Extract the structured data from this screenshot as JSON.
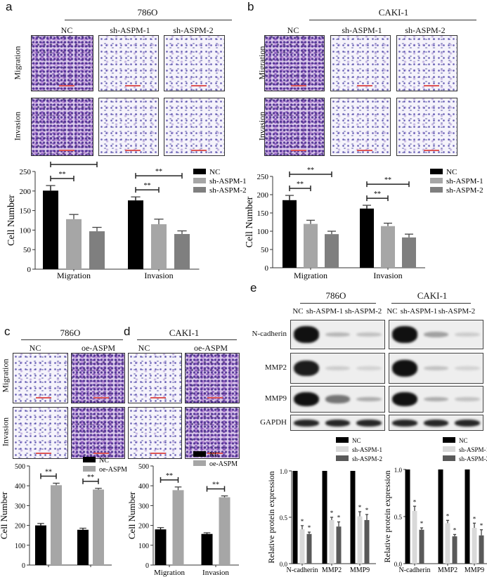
{
  "panel_a": {
    "label": "a",
    "cell_line": "786O",
    "columns": [
      "NC",
      "sh-ASPM-1",
      "sh-ASPM-2"
    ],
    "rows": [
      "Migration",
      "Invasion"
    ]
  },
  "panel_b": {
    "label": "b",
    "cell_line": "CAKI-1",
    "columns": [
      "NC",
      "sh-ASPM-1",
      "sh-ASPM-2"
    ],
    "rows": [
      "Migration",
      "Invasion"
    ]
  },
  "panel_c": {
    "label": "c",
    "cell_line": "786O",
    "columns": [
      "NC",
      "oe-ASPM"
    ],
    "rows": [
      "Migration",
      "Invasion"
    ]
  },
  "panel_d": {
    "label": "d",
    "cell_line": "CAKI-1",
    "columns": [
      "NC",
      "oe-ASPM"
    ]
  },
  "panel_e": {
    "label": "e",
    "cell_lines": [
      "786O",
      "CAKI-1"
    ],
    "columns": [
      "NC",
      "sh-ASPM-1",
      "sh-ASPM-2"
    ],
    "proteins": [
      "N-cadherin",
      "MMP2",
      "MMP9",
      "GAPDH"
    ]
  },
  "colors": {
    "NC": "#000000",
    "sh-ASPM-1": "#a6a6a6",
    "sh-ASPM-2": "#7f7f7f",
    "oe-ASPM": "#a6a6a6",
    "e_sh-ASPM-1": "#d9d9d9",
    "e_sh-ASPM-2": "#595959"
  },
  "chart_data": [
    {
      "type": "bar",
      "panel": "a",
      "categories": [
        "Migration",
        "Invasion"
      ],
      "ylabel": "Cell Number",
      "ylim": [
        0,
        250
      ],
      "yticks": [
        "0",
        "50",
        "100",
        "150",
        "200",
        "250"
      ],
      "series": [
        {
          "name": "NC",
          "values": [
            201,
            176
          ],
          "errors": [
            13,
            9
          ]
        },
        {
          "name": "sh-ASPM-1",
          "values": [
            128,
            115
          ],
          "errors": [
            12,
            13
          ]
        },
        {
          "name": "sh-ASPM-2",
          "values": [
            97,
            90
          ],
          "errors": [
            10,
            8
          ]
        }
      ],
      "significance": [
        {
          "category": 0,
          "from": 0,
          "to": 1,
          "label": "**"
        },
        {
          "category": 0,
          "from": 0,
          "to": 2,
          "label": "**"
        },
        {
          "category": 1,
          "from": 0,
          "to": 1,
          "label": "**"
        },
        {
          "category": 1,
          "from": 0,
          "to": 2,
          "label": "**"
        }
      ],
      "legend": "right"
    },
    {
      "type": "bar",
      "panel": "b",
      "categories": [
        "Migration",
        "Invasion"
      ],
      "ylabel": "Cell Number",
      "ylim": [
        0,
        250
      ],
      "yticks": [
        "0",
        "50",
        "100",
        "150",
        "200",
        "250"
      ],
      "series": [
        {
          "name": "NC",
          "values": [
            185,
            162
          ],
          "errors": [
            13,
            9
          ]
        },
        {
          "name": "sh-ASPM-1",
          "values": [
            120,
            114
          ],
          "errors": [
            10,
            8
          ]
        },
        {
          "name": "sh-ASPM-2",
          "values": [
            92,
            83
          ],
          "errors": [
            8,
            9
          ]
        }
      ],
      "significance": [
        {
          "category": 0,
          "from": 0,
          "to": 1,
          "label": "**"
        },
        {
          "category": 0,
          "from": 0,
          "to": 2,
          "label": "**"
        },
        {
          "category": 1,
          "from": 0,
          "to": 1,
          "label": "**"
        },
        {
          "category": 1,
          "from": 0,
          "to": 2,
          "label": "**"
        }
      ],
      "legend": "right"
    },
    {
      "type": "bar",
      "panel": "c",
      "categories": [
        "",
        ""
      ],
      "ylabel": "Cell Number",
      "ylim": [
        0,
        500
      ],
      "yticks": [
        "0",
        "100",
        "200",
        "300",
        "400",
        "500"
      ],
      "series": [
        {
          "name": "NC",
          "values": [
            200,
            178
          ],
          "errors": [
            10,
            8
          ]
        },
        {
          "name": "oe-ASPM",
          "values": [
            403,
            381
          ],
          "errors": [
            10,
            6
          ]
        }
      ],
      "significance": [
        {
          "category": 0,
          "from": 0,
          "to": 1,
          "label": "**"
        },
        {
          "category": 1,
          "from": 0,
          "to": 1,
          "label": "**"
        }
      ],
      "legend": "top"
    },
    {
      "type": "bar",
      "panel": "d",
      "categories": [
        "Migration",
        "Invasion"
      ],
      "ylabel": "Cell Number",
      "ylim": [
        0,
        500
      ],
      "yticks": [
        "0",
        "100",
        "200",
        "300",
        "400",
        "500"
      ],
      "series": [
        {
          "name": "NC",
          "values": [
            180,
            157
          ],
          "errors": [
            9,
            6
          ]
        },
        {
          "name": "oe-ASPM",
          "values": [
            378,
            342
          ],
          "errors": [
            16,
            7
          ]
        }
      ],
      "significance": [
        {
          "category": 0,
          "from": 0,
          "to": 1,
          "label": "**"
        },
        {
          "category": 1,
          "from": 0,
          "to": 1,
          "label": "**"
        }
      ],
      "legend": "top"
    },
    {
      "type": "bar",
      "panel": "e-786O",
      "categories": [
        "N-cadherin",
        "MMP2",
        "MMP9"
      ],
      "ylabel": "Relative protein expression",
      "ylim": [
        0,
        1.0
      ],
      "yticks": [
        "0.0",
        "0.5",
        "1.0"
      ],
      "series": [
        {
          "name": "NC",
          "values": [
            1.0,
            1.0,
            1.0
          ],
          "errors": [
            0,
            0,
            0
          ]
        },
        {
          "name": "sh-ASPM-1",
          "values": [
            0.37,
            0.47,
            0.51
          ],
          "errors": [
            0.04,
            0.03,
            0.05
          ]
        },
        {
          "name": "sh-ASPM-2",
          "values": [
            0.32,
            0.4,
            0.47
          ],
          "errors": [
            0.02,
            0.05,
            0.06
          ]
        }
      ],
      "star_label": "*",
      "legend": "top"
    },
    {
      "type": "bar",
      "panel": "e-CAKI-1",
      "categories": [
        "N-cadherin",
        "MMP2",
        "MMP9"
      ],
      "ylabel": "Relative protein expression",
      "ylim": [
        0,
        1.0
      ],
      "yticks": [
        "0.0",
        "0.5",
        "1.0"
      ],
      "series": [
        {
          "name": "NC",
          "values": [
            1.0,
            1.0,
            1.0
          ],
          "errors": [
            0,
            0,
            0
          ]
        },
        {
          "name": "sh-ASPM-1",
          "values": [
            0.56,
            0.43,
            0.38
          ],
          "errors": [
            0.05,
            0.03,
            0.05
          ]
        },
        {
          "name": "sh-ASPM-2",
          "values": [
            0.36,
            0.29,
            0.3
          ],
          "errors": [
            0.02,
            0.02,
            0.06
          ]
        }
      ],
      "star_label": "*",
      "legend": "top"
    }
  ]
}
